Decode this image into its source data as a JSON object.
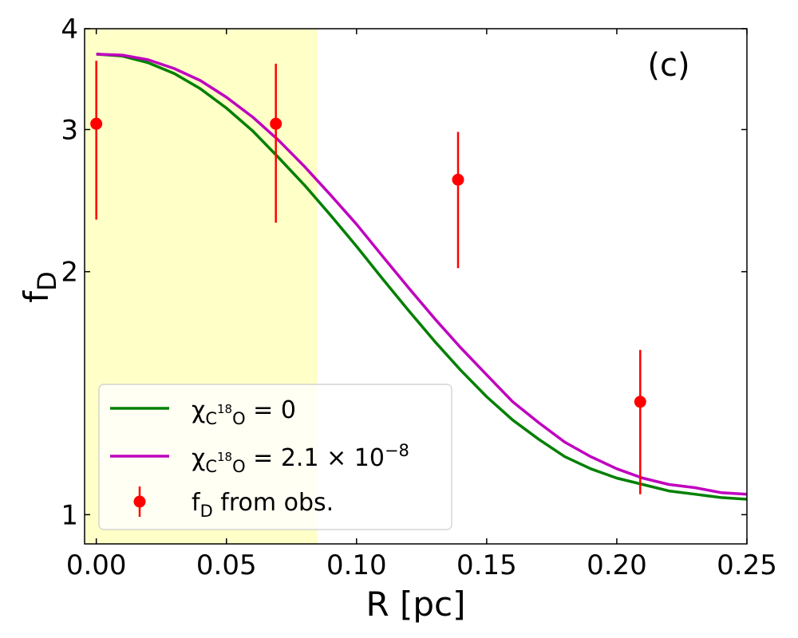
{
  "chart_data": {
    "type": "line",
    "panel_label": "(c)",
    "xlabel": "R [pc]",
    "ylabel": {
      "base": "f",
      "sub": "D"
    },
    "xlim": [
      -0.0045,
      0.25
    ],
    "ylim": [
      0.92,
      4.0
    ],
    "yscale": "log",
    "xticks": [
      "0.00",
      "0.05",
      "0.10",
      "0.15",
      "0.20",
      "0.25"
    ],
    "yticks": [
      "1",
      "2",
      "3",
      "4"
    ],
    "shaded_region": {
      "x_from": -0.0045,
      "x_to": 0.085,
      "color": "#ffffc8"
    },
    "series": [
      {
        "name": "chi_C18O = 0",
        "label": {
          "chi": "χ",
          "sub": "C",
          "sup": "18",
          "sub2": "O",
          "rest": " = 0"
        },
        "color": "#008000",
        "x": [
          0.0,
          0.01,
          0.02,
          0.03,
          0.04,
          0.05,
          0.06,
          0.07,
          0.08,
          0.09,
          0.1,
          0.11,
          0.12,
          0.13,
          0.14,
          0.15,
          0.16,
          0.17,
          0.18,
          0.19,
          0.2,
          0.21,
          0.22,
          0.23,
          0.24,
          0.25
        ],
        "y": [
          3.72,
          3.7,
          3.63,
          3.52,
          3.37,
          3.19,
          2.99,
          2.77,
          2.56,
          2.35,
          2.15,
          1.96,
          1.79,
          1.64,
          1.51,
          1.4,
          1.31,
          1.24,
          1.18,
          1.14,
          1.11,
          1.09,
          1.07,
          1.06,
          1.05,
          1.045
        ]
      },
      {
        "name": "chi_C18O = 2.1e-8",
        "label": {
          "chi": "χ",
          "sub": "C",
          "sup": "18",
          "sub2": "O",
          "rest": " = 2.1 × 10",
          "exp": "−8"
        },
        "color": "#bf00bf",
        "x": [
          0.0,
          0.01,
          0.02,
          0.03,
          0.04,
          0.05,
          0.06,
          0.07,
          0.08,
          0.09,
          0.1,
          0.11,
          0.12,
          0.13,
          0.14,
          0.15,
          0.16,
          0.17,
          0.18,
          0.19,
          0.2,
          0.21,
          0.22,
          0.23,
          0.24,
          0.25
        ],
        "y": [
          3.72,
          3.71,
          3.66,
          3.57,
          3.45,
          3.29,
          3.11,
          2.91,
          2.7,
          2.49,
          2.29,
          2.09,
          1.91,
          1.75,
          1.61,
          1.49,
          1.38,
          1.3,
          1.23,
          1.18,
          1.14,
          1.11,
          1.09,
          1.08,
          1.065,
          1.06
        ]
      }
    ],
    "observations": {
      "name": "f_D from obs.",
      "label": {
        "base": "f",
        "sub": "D",
        "rest": " from obs."
      },
      "color": "#ff0000",
      "points": [
        {
          "x": 0.0,
          "y": 3.05,
          "ylow": 2.32,
          "yhigh": 3.65
        },
        {
          "x": 0.069,
          "y": 3.05,
          "ylow": 2.3,
          "yhigh": 3.62
        },
        {
          "x": 0.139,
          "y": 2.6,
          "ylow": 2.02,
          "yhigh": 2.98
        },
        {
          "x": 0.209,
          "y": 1.38,
          "ylow": 1.06,
          "yhigh": 1.6
        }
      ]
    },
    "legend_position": "lower-left"
  }
}
